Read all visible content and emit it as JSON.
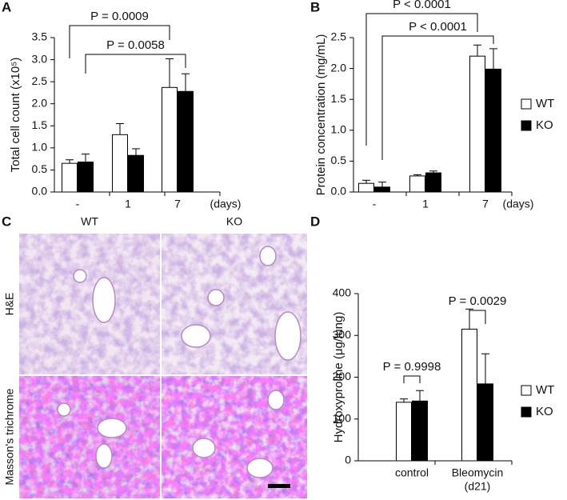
{
  "chart_data": [
    {
      "type": "bar",
      "panel": "A",
      "y_label": "Total cell count (x10⁵)",
      "x_unit": "(days)",
      "categories": [
        "-",
        "1",
        "7"
      ],
      "series": [
        {
          "name": "WT",
          "color": "#ffffff",
          "values": [
            0.65,
            1.3,
            2.37
          ],
          "errors": [
            0.08,
            0.25,
            0.65
          ]
        },
        {
          "name": "KO",
          "color": "#000000",
          "values": [
            0.68,
            0.83,
            2.28
          ],
          "errors": [
            0.18,
            0.15,
            0.4
          ]
        }
      ],
      "ylim": [
        0,
        3.5
      ],
      "yticks": [
        {
          "value": 0,
          "label": "0.0"
        },
        {
          "value": 0.5,
          "label": "0.5"
        },
        {
          "value": 1,
          "label": "1.0"
        },
        {
          "value": 1.5,
          "label": "1.5"
        },
        {
          "value": 2,
          "label": "2.0"
        },
        {
          "value": 2.5,
          "label": "2.5"
        },
        {
          "value": 3,
          "label": "3.0"
        },
        {
          "value": 3.5,
          "label": "3.5"
        }
      ],
      "annotations": [
        "P = 0.0009",
        "P = 0.0058"
      ],
      "legend": false
    },
    {
      "type": "bar",
      "panel": "B",
      "y_label": "Protein concentration (mg/mL)",
      "x_unit": "(days)",
      "categories": [
        "-",
        "1",
        "7"
      ],
      "series": [
        {
          "name": "WT",
          "color": "#ffffff",
          "values": [
            0.14,
            0.26,
            2.2
          ],
          "errors": [
            0.05,
            0.02,
            0.18
          ]
        },
        {
          "name": "KO",
          "color": "#000000",
          "values": [
            0.08,
            0.31,
            1.99
          ],
          "errors": [
            0.08,
            0.03,
            0.33
          ]
        }
      ],
      "ylim": [
        0,
        2.5
      ],
      "yticks": [
        {
          "value": 0,
          "label": "0.0"
        },
        {
          "value": 0.5,
          "label": "0.5"
        },
        {
          "value": 1,
          "label": "1.0"
        },
        {
          "value": 1.5,
          "label": "1.5"
        },
        {
          "value": 2,
          "label": "2.0"
        },
        {
          "value": 2.5,
          "label": "2.5"
        }
      ],
      "annotations": [
        "P < 0.0001",
        "P < 0.0001"
      ],
      "legend": true
    },
    {
      "type": "bar",
      "panel": "D",
      "y_label": "Hydroxyproline (μg/lung)",
      "categories": [
        [
          "control"
        ],
        [
          "Bleomycin",
          "(d21)"
        ]
      ],
      "series": [
        {
          "name": "WT",
          "color": "#ffffff",
          "values": [
            140,
            315
          ],
          "errors": [
            8,
            48
          ]
        },
        {
          "name": "KO",
          "color": "#000000",
          "values": [
            143,
            184
          ],
          "errors": [
            25,
            72
          ]
        }
      ],
      "ylim": [
        0,
        400
      ],
      "yticks": [
        0,
        100,
        200,
        300,
        400
      ],
      "annotations": [
        "P = 0.9998",
        "P = 0.0029"
      ],
      "legend": true
    }
  ],
  "panel_c": {
    "panel": "C",
    "columns": [
      "WT",
      "KO"
    ],
    "rows": [
      "H&E",
      "Masson's trichrome"
    ]
  }
}
